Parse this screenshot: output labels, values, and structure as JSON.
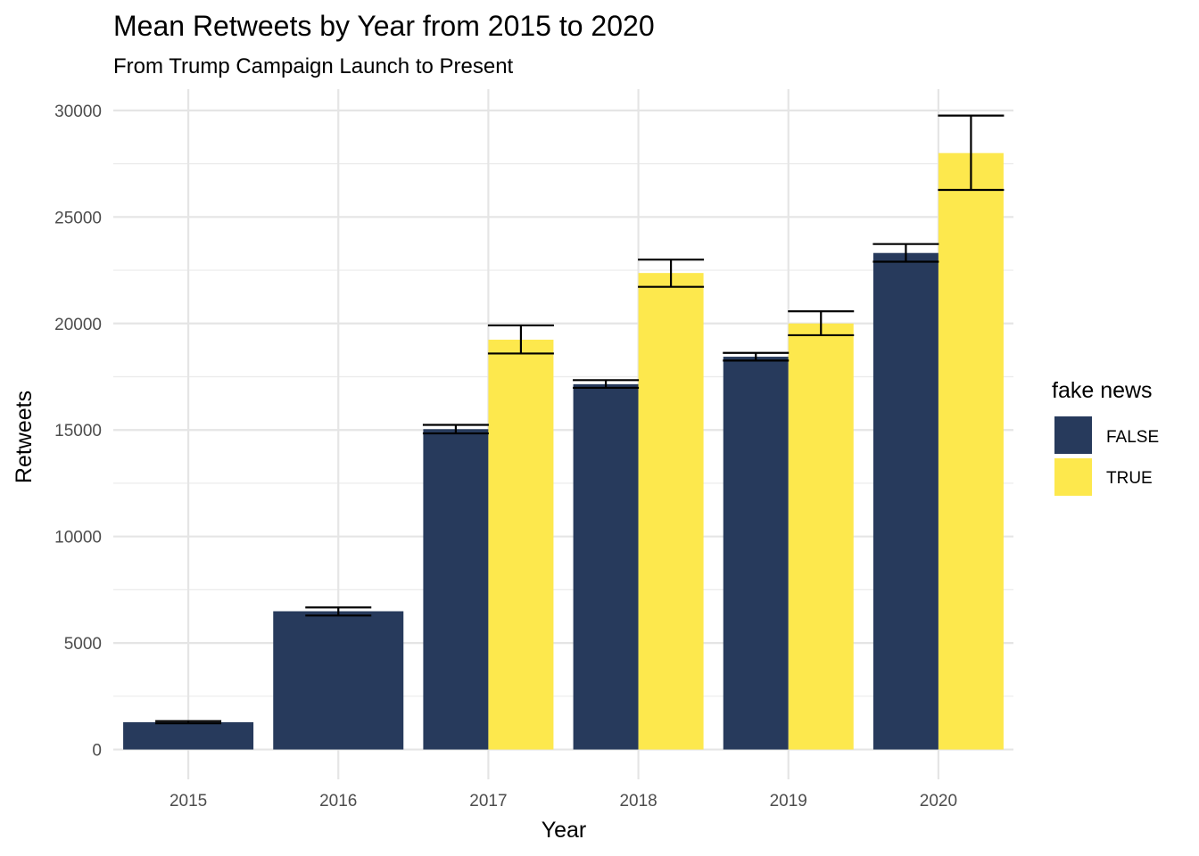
{
  "chart_data": {
    "type": "bar",
    "title": "Mean Retweets by Year from 2015 to 2020",
    "subtitle": "From Trump Campaign Launch to Present",
    "xlabel": "Year",
    "ylabel": "Retweets",
    "categories": [
      "2015",
      "2016",
      "2017",
      "2018",
      "2019",
      "2020"
    ],
    "ylim": [
      -1400,
      31000
    ],
    "yticks": [
      0,
      5000,
      10000,
      15000,
      20000,
      25000,
      30000
    ],
    "grid": true,
    "legend": {
      "title": "fake news",
      "position": "right"
    },
    "series": [
      {
        "name": "FALSE",
        "color": "#273a5c",
        "values": [
          1280,
          6490,
          15040,
          17150,
          18440,
          23310
        ],
        "error_low": [
          1230,
          6290,
          14840,
          16980,
          18260,
          22900
        ],
        "error_high": [
          1330,
          6670,
          15240,
          17340,
          18620,
          23730
        ]
      },
      {
        "name": "TRUE",
        "color": "#fde84d",
        "values": [
          null,
          null,
          19240,
          22370,
          20000,
          28000
        ],
        "error_low": [
          null,
          null,
          18590,
          21720,
          19450,
          26270
        ],
        "error_high": [
          null,
          null,
          19910,
          23000,
          20570,
          29760
        ]
      }
    ]
  }
}
